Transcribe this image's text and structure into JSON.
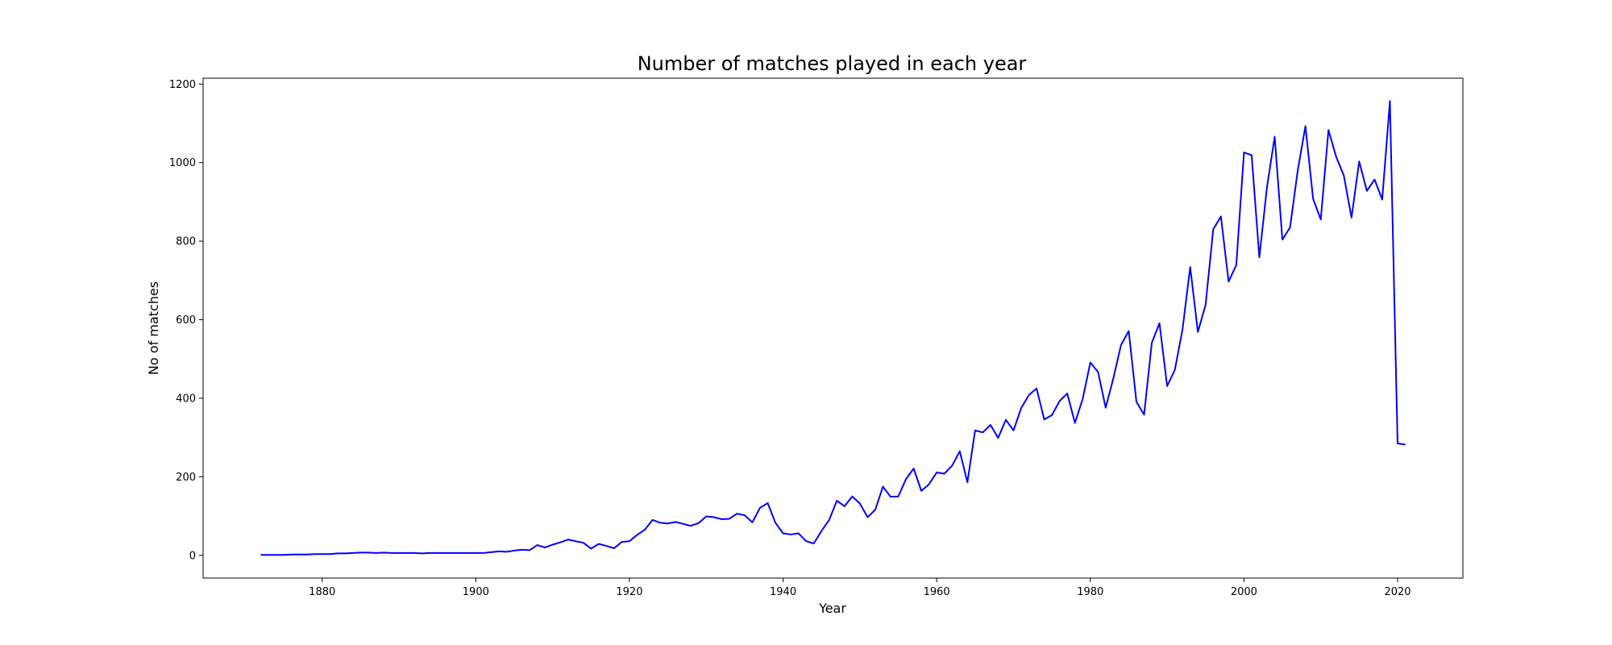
{
  "chart_data": {
    "type": "line",
    "title": "Number of matches played in each year",
    "xlabel": "Year",
    "ylabel": "No of matches",
    "xlim": [
      1864.5,
      2028.5
    ],
    "ylim": [
      -58,
      1215
    ],
    "xticks": [
      1880,
      1900,
      1920,
      1940,
      1960,
      1980,
      2000,
      2020
    ],
    "yticks": [
      0,
      200,
      400,
      600,
      800,
      1000,
      1200
    ],
    "grid": false,
    "legend": "none",
    "line_color": "#0000ff",
    "series": [
      {
        "x": [
          1872,
          1873,
          1874,
          1875,
          1876,
          1877,
          1878,
          1879,
          1880,
          1881,
          1882,
          1883,
          1884,
          1885,
          1886,
          1887,
          1888,
          1889,
          1890,
          1891,
          1892,
          1893,
          1894,
          1895,
          1896,
          1897,
          1898,
          1899,
          1900,
          1901,
          1902,
          1903,
          1904,
          1905,
          1906,
          1907,
          1908,
          1909,
          1910,
          1911,
          1912,
          1913,
          1914,
          1915,
          1916,
          1917,
          1918,
          1919,
          1920,
          1921,
          1922,
          1923,
          1924,
          1925,
          1926,
          1927,
          1928,
          1929,
          1930,
          1931,
          1932,
          1933,
          1934,
          1935,
          1936,
          1937,
          1938,
          1939,
          1940,
          1941,
          1942,
          1943,
          1944,
          1945,
          1946,
          1947,
          1948,
          1949,
          1950,
          1951,
          1952,
          1953,
          1954,
          1955,
          1956,
          1957,
          1958,
          1959,
          1960,
          1961,
          1962,
          1963,
          1964,
          1965,
          1966,
          1967,
          1968,
          1969,
          1970,
          1971,
          1972,
          1973,
          1974,
          1975,
          1976,
          1977,
          1978,
          1979,
          1980,
          1981,
          1982,
          1983,
          1984,
          1985,
          1986,
          1987,
          1988,
          1989,
          1990,
          1991,
          1992,
          1993,
          1994,
          1995,
          1996,
          1997,
          1998,
          1999,
          2000,
          2001,
          2002,
          2003,
          2004,
          2005,
          2006,
          2007,
          2008,
          2009,
          2010,
          2011,
          2012,
          2013,
          2014,
          2015,
          2016,
          2017,
          2018,
          2019,
          2020,
          2021
        ],
        "values": [
          1,
          1,
          1,
          1,
          2,
          2,
          2,
          3,
          3,
          3,
          5,
          5,
          6,
          7,
          7,
          6,
          7,
          6,
          6,
          6,
          6,
          5,
          6,
          6,
          6,
          6,
          6,
          6,
          6,
          6,
          8,
          10,
          9,
          12,
          14,
          13,
          26,
          20,
          27,
          33,
          40,
          36,
          32,
          17,
          29,
          24,
          18,
          34,
          36,
          52,
          65,
          90,
          83,
          81,
          85,
          80,
          75,
          82,
          99,
          97,
          92,
          93,
          106,
          102,
          84,
          121,
          133,
          83,
          56,
          53,
          56,
          36,
          30,
          62,
          90,
          139,
          125,
          150,
          132,
          97,
          116,
          175,
          149,
          150,
          194,
          221,
          164,
          181,
          211,
          208,
          228,
          265,
          186,
          318,
          313,
          332,
          299,
          345,
          318,
          375,
          408,
          425,
          346,
          357,
          393,
          412,
          337,
          398,
          491,
          467,
          376,
          451,
          536,
          571,
          391,
          358,
          541,
          591,
          431,
          472,
          575,
          734,
          569,
          637,
          830,
          863,
          697,
          739,
          1026,
          1019,
          759,
          938,
          1066,
          804,
          835,
          980,
          1093,
          908,
          855,
          1083,
          1015,
          967,
          860,
          1003,
          928,
          957,
          906,
          1157,
          285,
          282
        ]
      }
    ]
  }
}
